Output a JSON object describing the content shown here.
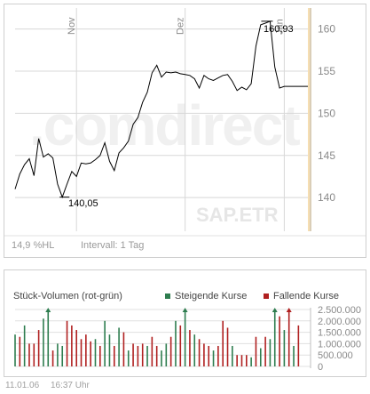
{
  "price_panel": {
    "watermark": ".comdirect",
    "ticker": "SAP.ETR",
    "month_labels": [
      "Nov",
      "Dez",
      "Jan"
    ],
    "y_ticks": [
      "140",
      "145",
      "150",
      "155",
      "160"
    ],
    "min_label": "140,05",
    "max_label": "160,93",
    "hl_label": "14,9 %HL",
    "interval_label": "Intervall: 1 Tag"
  },
  "volume_panel": {
    "title": "Stück-Volumen (rot-grün)",
    "legend_up": "Steigende Kurse",
    "legend_down": "Fallende Kurse",
    "y_ticks": [
      "2.500.000",
      "2.000.000",
      "1.500.000",
      "1.000.000",
      "500.000",
      "0"
    ]
  },
  "footer": {
    "date": "11.01.06",
    "time": "16:37 Uhr"
  },
  "colors": {
    "up": "#2e7d4f",
    "down": "#b02020",
    "line": "#000000",
    "grid": "#d8d8d8",
    "highlight": "#f6deb2"
  },
  "chart_data": [
    {
      "type": "line",
      "title": "",
      "xlabel": "",
      "ylabel": "",
      "ylim": [
        136,
        162.5
      ],
      "month_starts": {
        "Nov": 13,
        "Dez": 36,
        "Jan": 57
      },
      "x": [
        0,
        1,
        2,
        3,
        4,
        5,
        6,
        7,
        8,
        9,
        10,
        11,
        12,
        13,
        14,
        15,
        16,
        17,
        18,
        19,
        20,
        21,
        22,
        23,
        24,
        25,
        26,
        27,
        28,
        29,
        30,
        31,
        32,
        33,
        34,
        35,
        36,
        37,
        38,
        39,
        40,
        41,
        42,
        43,
        44,
        45,
        46,
        47,
        48,
        49,
        50,
        51,
        52,
        53,
        54,
        55,
        56,
        57,
        58,
        59,
        60,
        61,
        62
      ],
      "values": [
        141.0,
        142.8,
        143.9,
        144.6,
        142.6,
        147.0,
        144.8,
        145.2,
        144.7,
        141.6,
        140.05,
        141.6,
        143.1,
        142.5,
        144.1,
        144.0,
        144.1,
        144.5,
        145.0,
        146.5,
        144.3,
        143.2,
        145.3,
        145.9,
        146.7,
        148.7,
        149.5,
        151.3,
        152.5,
        154.8,
        155.7,
        154.3,
        154.9,
        154.8,
        154.9,
        154.7,
        154.6,
        154.5,
        154.1,
        153.0,
        154.5,
        154.1,
        153.9,
        154.2,
        154.5,
        154.6,
        153.8,
        152.7,
        153.1,
        152.8,
        153.5,
        158.0,
        160.5,
        160.7,
        160.93,
        155.5,
        153.0,
        153.2,
        153.2,
        153.2,
        153.2,
        153.2,
        153.2
      ]
    },
    {
      "type": "bar",
      "title": "Stück-Volumen (rot-grün)",
      "ylim": [
        0,
        2500000
      ],
      "series": [
        {
          "name": "Steigende Kurse",
          "bars": [
            [
              0,
              1400000
            ],
            [
              2,
              1800000
            ],
            [
              6,
              2100000
            ],
            [
              7,
              2600000
            ],
            [
              9,
              1000000
            ],
            [
              10,
              900000
            ],
            [
              17,
              1200000
            ],
            [
              19,
              2000000
            ],
            [
              20,
              1400000
            ],
            [
              22,
              1700000
            ],
            [
              24,
              700000
            ],
            [
              28,
              900000
            ],
            [
              31,
              700000
            ],
            [
              32,
              1000000
            ],
            [
              34,
              2000000
            ],
            [
              36,
              2700000
            ],
            [
              38,
              1400000
            ],
            [
              42,
              700000
            ],
            [
              46,
              900000
            ],
            [
              50,
              400000
            ],
            [
              52,
              800000
            ],
            [
              54,
              1200000
            ],
            [
              55,
              2600000
            ],
            [
              57,
              1600000
            ],
            [
              59,
              900000
            ]
          ]
        },
        {
          "name": "Fallende Kurse",
          "bars": [
            [
              1,
              1300000
            ],
            [
              3,
              1000000
            ],
            [
              4,
              1000000
            ],
            [
              5,
              1600000
            ],
            [
              8,
              700000
            ],
            [
              11,
              2000000
            ],
            [
              12,
              1800000
            ],
            [
              13,
              1600000
            ],
            [
              14,
              1200000
            ],
            [
              15,
              1400000
            ],
            [
              16,
              1100000
            ],
            [
              18,
              900000
            ],
            [
              21,
              900000
            ],
            [
              23,
              1500000
            ],
            [
              25,
              1000000
            ],
            [
              26,
              900000
            ],
            [
              27,
              1000000
            ],
            [
              29,
              1300000
            ],
            [
              30,
              900000
            ],
            [
              33,
              1300000
            ],
            [
              35,
              1800000
            ],
            [
              37,
              1600000
            ],
            [
              39,
              1200000
            ],
            [
              40,
              1000000
            ],
            [
              41,
              900000
            ],
            [
              43,
              900000
            ],
            [
              44,
              2000000
            ],
            [
              45,
              1700000
            ],
            [
              47,
              500000
            ],
            [
              48,
              500000
            ],
            [
              49,
              500000
            ],
            [
              51,
              1300000
            ],
            [
              53,
              1300000
            ],
            [
              56,
              2200000
            ],
            [
              58,
              2700000
            ],
            [
              60,
              1800000
            ]
          ]
        }
      ]
    }
  ]
}
